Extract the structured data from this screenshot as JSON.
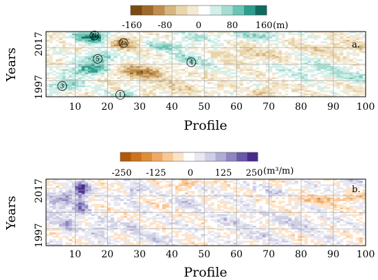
{
  "chart_data": [
    {
      "type": "heatmap",
      "panel_label": "a.",
      "xlabel": "Profile",
      "ylabel": "Years",
      "x_ticks": [
        "10",
        "20",
        "30",
        "40",
        "50",
        "60",
        "70",
        "80",
        "90",
        "100"
      ],
      "y_ticks": [
        "2017",
        "1997"
      ],
      "xlim": [
        1,
        100
      ],
      "ylim": [
        1997,
        2017
      ],
      "grid": true,
      "colorbar": {
        "position": "top",
        "unit": "(m)",
        "ticks": [
          "-160",
          "-80",
          "0",
          "80",
          "160"
        ],
        "range": [
          -160,
          160
        ],
        "colors": [
          "#7a4a12",
          "#9e6a2a",
          "#bf8d4f",
          "#d7b57f",
          "#e9d5ab",
          "#f4ead4",
          "#ffffff",
          "#d2efe9",
          "#a6ddd2",
          "#6cc4b4",
          "#2f9d8d",
          "#0f6b5d"
        ]
      },
      "annotations": [
        {
          "label": "2b",
          "profile": 16,
          "year": 2015.8
        },
        {
          "label": "2a",
          "profile": 25,
          "year": 2013.5
        },
        {
          "label": "5",
          "profile": 17,
          "year": 2008.6
        },
        {
          "label": "4",
          "profile": 46,
          "year": 2007.6
        },
        {
          "label": "3",
          "profile": 6,
          "year": 2000.3
        },
        {
          "label": "1",
          "profile": 24,
          "year": 1997.6
        }
      ],
      "features": [
        {
          "profile": 16,
          "year": 2015.5,
          "value": 150,
          "sx": 4,
          "sy": 1.5
        },
        {
          "profile": 25,
          "year": 2013.2,
          "value": -110,
          "sx": 5,
          "sy": 1.6
        },
        {
          "profile": 18,
          "year": 2009.3,
          "value": 90,
          "sx": 4,
          "sy": 1.8
        },
        {
          "profile": 14,
          "year": 2005.2,
          "value": 110,
          "sx": 5,
          "sy": 1.4
        },
        {
          "profile": 7,
          "year": 2000.5,
          "value": 90,
          "sx": 4,
          "sy": 1.2
        },
        {
          "profile": 24,
          "year": 1998.3,
          "value": 160,
          "sx": 3,
          "sy": 1.5
        },
        {
          "profile": 23,
          "year": 1998.6,
          "value": -140,
          "sx": 2,
          "sy": 1.3
        },
        {
          "profile": 30,
          "year": 2004.7,
          "value": -90,
          "sx": 7,
          "sy": 1.5
        },
        {
          "profile": 46,
          "year": 2008.5,
          "value": 60,
          "sx": 6,
          "sy": 2.0
        },
        {
          "profile": 35,
          "year": 2012.8,
          "value": 70,
          "sx": 8,
          "sy": 1.2
        },
        {
          "profile": 60,
          "year": 2010.0,
          "value": -40,
          "sx": 10,
          "sy": 1.5
        },
        {
          "profile": 70,
          "year": 1998.6,
          "value": -60,
          "sx": 3,
          "sy": 1.3
        },
        {
          "profile": 68,
          "year": 2016.0,
          "value": 60,
          "sx": 4,
          "sy": 1.0
        },
        {
          "profile": 84,
          "year": 2005.5,
          "value": 45,
          "sx": 8,
          "sy": 2.0
        },
        {
          "profile": 92,
          "year": 2012.0,
          "value": -35,
          "sx": 6,
          "sy": 1.5
        },
        {
          "profile": 97,
          "year": 2003.0,
          "value": 45,
          "sx": 4,
          "sy": 1.2
        },
        {
          "profile": 40,
          "year": 2000.0,
          "value": -30,
          "sx": 8,
          "sy": 1.5
        },
        {
          "profile": 52,
          "year": 2015.5,
          "value": 40,
          "sx": 10,
          "sy": 1.0
        }
      ]
    },
    {
      "type": "heatmap",
      "panel_label": "b.",
      "xlabel": "Profile",
      "ylabel": "Years",
      "x_ticks": [
        "10",
        "20",
        "30",
        "40",
        "50",
        "60",
        "70",
        "80",
        "90",
        "100"
      ],
      "y_ticks": [
        "2017",
        "1997"
      ],
      "xlim": [
        1,
        100
      ],
      "ylim": [
        1997,
        2017
      ],
      "grid": true,
      "colorbar": {
        "position": "top",
        "unit": "(m³/m)",
        "ticks": [
          "-250",
          "-125",
          "0",
          "125",
          "250"
        ],
        "range": [
          -250,
          250
        ],
        "colors": [
          "#b35806",
          "#cf721c",
          "#e08d3a",
          "#efa964",
          "#f8c794",
          "#fde3c8",
          "#ffffff",
          "#e8e8f2",
          "#cfcfe6",
          "#b1acd4",
          "#8e86c0",
          "#6a58a8",
          "#4a2a8c"
        ]
      },
      "features": [
        {
          "profile": 12,
          "year": 2014.0,
          "value": 220,
          "sx": 1.5,
          "sy": 1.5
        },
        {
          "profile": 12,
          "year": 2009.0,
          "value": 160,
          "sx": 1.5,
          "sy": 2.0
        },
        {
          "profile": 8,
          "year": 2012.0,
          "value": 120,
          "sx": 1.5,
          "sy": 1.5
        },
        {
          "profile": 8,
          "year": 2004.0,
          "value": 110,
          "sx": 1.5,
          "sy": 2.0
        },
        {
          "profile": 4,
          "year": 2009.0,
          "value": 90,
          "sx": 2.0,
          "sy": 3.0
        },
        {
          "profile": 18,
          "year": 2002.0,
          "value": 80,
          "sx": 3.0,
          "sy": 1.5
        },
        {
          "profile": 28,
          "year": 2013.0,
          "value": 90,
          "sx": 2.0,
          "sy": 1.5
        },
        {
          "profile": 28,
          "year": 2003.0,
          "value": 70,
          "sx": 2.0,
          "sy": 1.5
        },
        {
          "profile": 45,
          "year": 2016.0,
          "value": -120,
          "sx": 2.0,
          "sy": 0.9
        },
        {
          "profile": 45,
          "year": 2010.0,
          "value": 60,
          "sx": 3.0,
          "sy": 1.5
        },
        {
          "profile": 60,
          "year": 2005.0,
          "value": 45,
          "sx": 6.0,
          "sy": 2.0
        },
        {
          "profile": 72,
          "year": 2013.0,
          "value": 50,
          "sx": 5.0,
          "sy": 1.0
        },
        {
          "profile": 85,
          "year": 2011.0,
          "value": -80,
          "sx": 7.0,
          "sy": 0.8
        },
        {
          "profile": 80,
          "year": 2004.0,
          "value": 50,
          "sx": 5.0,
          "sy": 1.5
        },
        {
          "profile": 95,
          "year": 2016.0,
          "value": 60,
          "sx": 3.0,
          "sy": 1.0
        },
        {
          "profile": 96,
          "year": 2011.5,
          "value": -70,
          "sx": 3.0,
          "sy": 0.8
        },
        {
          "profile": 35,
          "year": 1999.0,
          "value": 45,
          "sx": 5.0,
          "sy": 1.5
        },
        {
          "profile": 65,
          "year": 1999.5,
          "value": 40,
          "sx": 6.0,
          "sy": 1.5
        }
      ]
    }
  ]
}
